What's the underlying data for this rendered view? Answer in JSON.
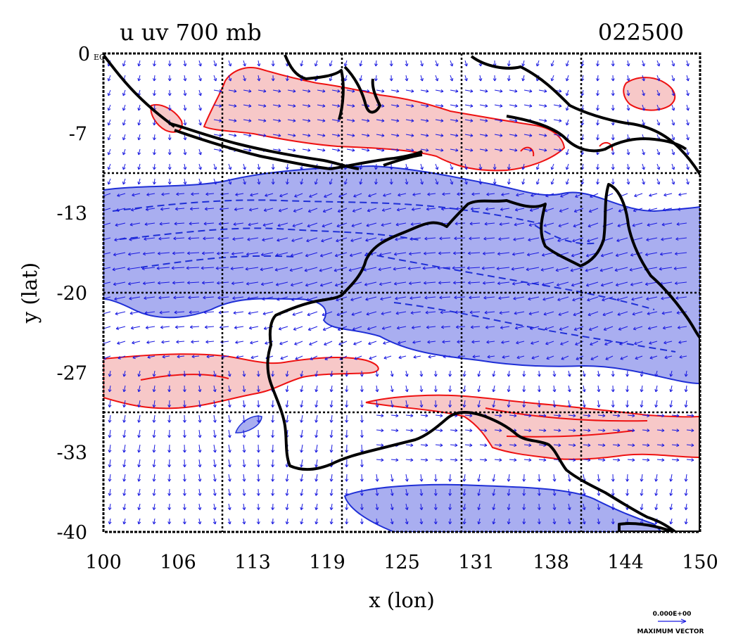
{
  "title_left": "u uv 700 mb",
  "title_right": "022500",
  "x_axis": {
    "label": "x (lon)",
    "ticks": [
      "100",
      "106",
      "113",
      "119",
      "125",
      "131",
      "138",
      "144",
      "150"
    ]
  },
  "y_axis": {
    "label": "y (lat)",
    "ticks": [
      "0",
      "-7",
      "-13",
      "-20",
      "-27",
      "-33",
      "-40"
    ],
    "corner_label": "EQ"
  },
  "legend": {
    "magnitude": "0.000E+00",
    "label": "MAXIMUM VECTOR"
  },
  "colors": {
    "positive_fill": "#f7c8c8",
    "positive_line": "#ee1111",
    "negative_fill": "#a9aef0",
    "negative_line": "#1f2fd6",
    "vector": "#1a1ae0",
    "coast": "#000000",
    "grid": "#000000"
  }
}
